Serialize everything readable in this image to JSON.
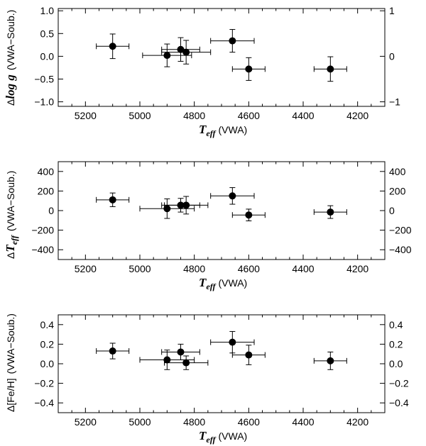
{
  "chart_data": [
    {
      "type": "scatter",
      "xlim": [
        5300,
        4100
      ],
      "ylim": [
        -1.1,
        1.05
      ],
      "x_ticks": [
        5200,
        5000,
        4800,
        4600,
        4400,
        4200
      ],
      "y_ticks_left": [
        1.0,
        0.5,
        0.0,
        -0.5,
        -1.0
      ],
      "y_ticks_left_labels": [
        "1.0",
        "0.5",
        "0.0",
        "−0.5",
        "−1.0"
      ],
      "y_ticks_right": [
        1,
        0,
        -1
      ],
      "y_ticks_right_labels": [
        "1",
        "0",
        "−1"
      ],
      "ylabel_delta": "Δ",
      "ylabel_main": "log g",
      "ylabel_suffix": "(VWA−Soub.)",
      "xlabel_main": "T",
      "xlabel_sub": "eff",
      "xlabel_suffix": "(VWA)",
      "points": [
        {
          "x": 5100,
          "y": 0.22,
          "xerr": 60,
          "yerr": 0.27
        },
        {
          "x": 4900,
          "y": 0.02,
          "xerr": 90,
          "yerr": 0.25
        },
        {
          "x": 4850,
          "y": 0.15,
          "xerr": 70,
          "yerr": 0.26
        },
        {
          "x": 4830,
          "y": 0.09,
          "xerr": 90,
          "yerr": 0.26
        },
        {
          "x": 4660,
          "y": 0.34,
          "xerr": 80,
          "yerr": 0.25
        },
        {
          "x": 4600,
          "y": -0.28,
          "xerr": 60,
          "yerr": 0.25
        },
        {
          "x": 4300,
          "y": -0.28,
          "xerr": 60,
          "yerr": 0.27
        }
      ]
    },
    {
      "type": "scatter",
      "xlim": [
        5300,
        4100
      ],
      "ylim": [
        -500,
        500
      ],
      "x_ticks": [
        5200,
        5000,
        4800,
        4600,
        4400,
        4200
      ],
      "y_ticks_left": [
        400,
        200,
        0,
        -200,
        -400
      ],
      "y_ticks_left_labels": [
        "400",
        "200",
        "0",
        "−200",
        "−400"
      ],
      "y_ticks_right": [
        400,
        200,
        0,
        -200,
        -400
      ],
      "y_ticks_right_labels": [
        "400",
        "200",
        "0",
        "−200",
        "−400"
      ],
      "ylabel_delta": "Δ",
      "ylabel_main": "T",
      "ylabel_sub": "eff",
      "ylabel_suffix": "(VWA−Soub.)",
      "xlabel_main": "T",
      "xlabel_sub": "eff",
      "xlabel_suffix": "(VWA)",
      "points": [
        {
          "x": 5100,
          "y": 110,
          "xerr": 60,
          "yerr": 70
        },
        {
          "x": 4900,
          "y": 20,
          "xerr": 100,
          "yerr": 100
        },
        {
          "x": 4850,
          "y": 55,
          "xerr": 70,
          "yerr": 70
        },
        {
          "x": 4830,
          "y": 55,
          "xerr": 80,
          "yerr": 90
        },
        {
          "x": 4660,
          "y": 150,
          "xerr": 80,
          "yerr": 85
        },
        {
          "x": 4600,
          "y": -45,
          "xerr": 60,
          "yerr": 60
        },
        {
          "x": 4300,
          "y": -15,
          "xerr": 60,
          "yerr": 65
        }
      ]
    },
    {
      "type": "scatter",
      "xlim": [
        5300,
        4100
      ],
      "ylim": [
        -0.5,
        0.5
      ],
      "x_ticks": [
        5200,
        5000,
        4800,
        4600,
        4400,
        4200
      ],
      "y_ticks_left": [
        0.4,
        0.2,
        0.0,
        -0.2,
        -0.4
      ],
      "y_ticks_left_labels": [
        "0.4",
        "0.2",
        "0.0",
        "−0.2",
        "−0.4"
      ],
      "y_ticks_right": [
        0.4,
        0.2,
        0.0,
        -0.2,
        -0.4
      ],
      "y_ticks_right_labels": [
        "0.4",
        "0.2",
        "0.0",
        "−0.2",
        "−0.4"
      ],
      "ylabel_delta": "Δ",
      "ylabel_main": "[Fe/H]",
      "ylabel_suffix": "(VWA−Soub.)",
      "xlabel_main": "T",
      "xlabel_sub": "eff",
      "xlabel_suffix": "(VWA)",
      "points": [
        {
          "x": 5100,
          "y": 0.13,
          "xerr": 60,
          "yerr": 0.08
        },
        {
          "x": 4900,
          "y": 0.04,
          "xerr": 100,
          "yerr": 0.1
        },
        {
          "x": 4850,
          "y": 0.12,
          "xerr": 70,
          "yerr": 0.08
        },
        {
          "x": 4830,
          "y": 0.01,
          "xerr": 80,
          "yerr": 0.07
        },
        {
          "x": 4660,
          "y": 0.22,
          "xerr": 80,
          "yerr": 0.11
        },
        {
          "x": 4600,
          "y": 0.09,
          "xerr": 60,
          "yerr": 0.1
        },
        {
          "x": 4300,
          "y": 0.03,
          "xerr": 60,
          "yerr": 0.09
        }
      ]
    }
  ]
}
